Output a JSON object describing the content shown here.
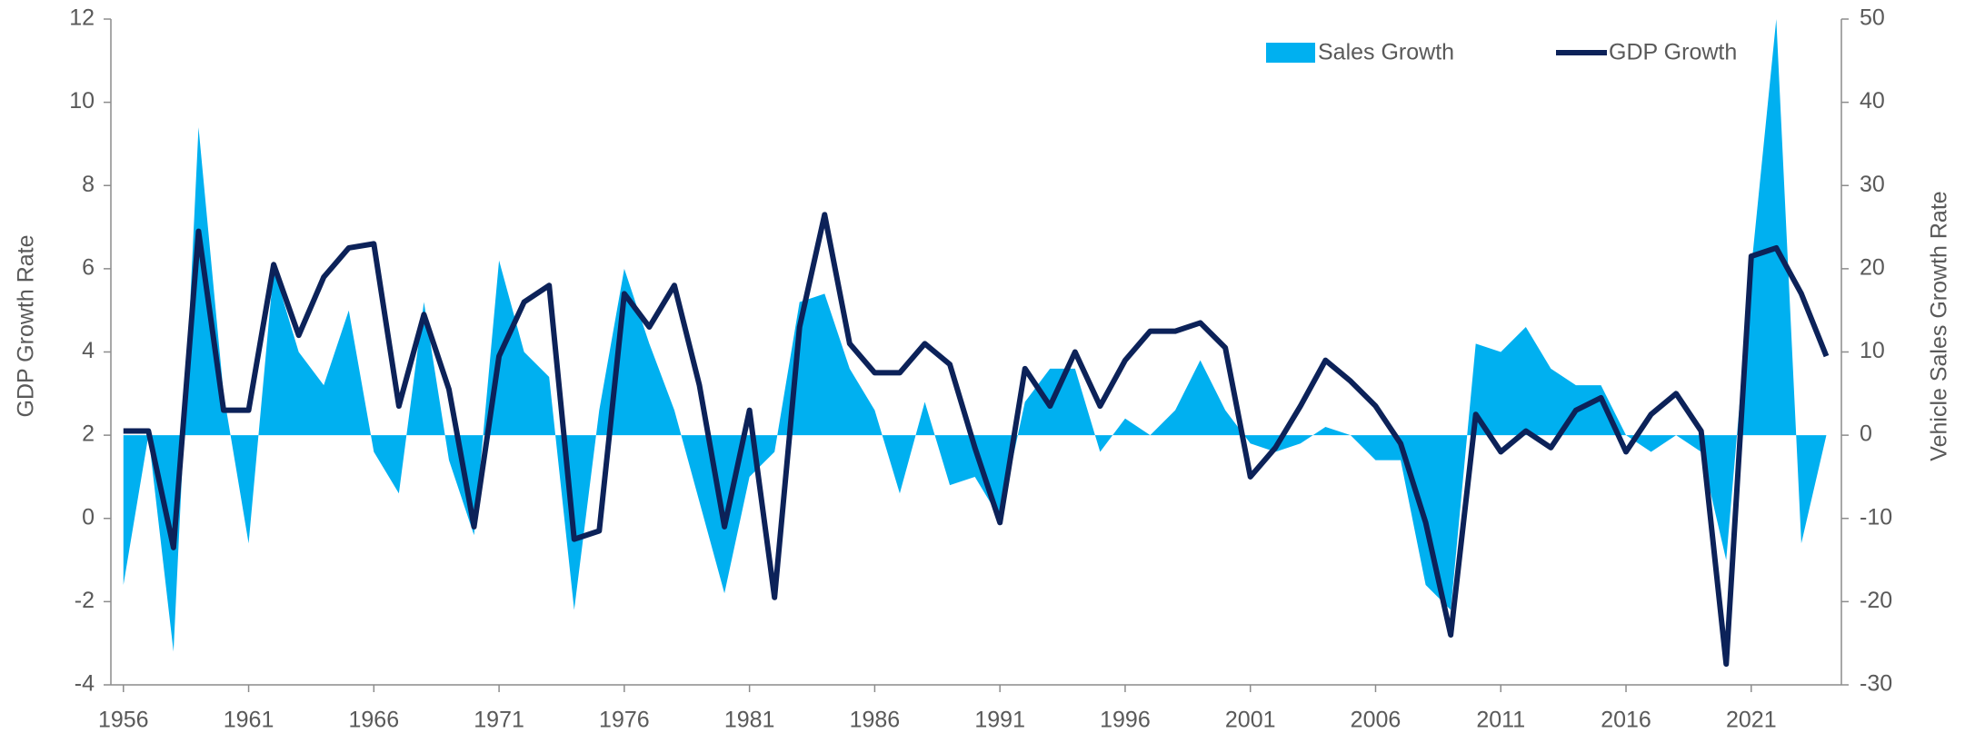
{
  "chart_data": {
    "type": "area-line",
    "x": [
      1956,
      1957,
      1958,
      1959,
      1960,
      1961,
      1962,
      1963,
      1964,
      1965,
      1966,
      1967,
      1968,
      1969,
      1970,
      1971,
      1972,
      1973,
      1974,
      1975,
      1976,
      1977,
      1978,
      1979,
      1980,
      1981,
      1982,
      1983,
      1984,
      1985,
      1986,
      1987,
      1988,
      1989,
      1990,
      1991,
      1992,
      1993,
      1994,
      1995,
      1996,
      1997,
      1998,
      1999,
      2000,
      2001,
      2002,
      2003,
      2004,
      2005,
      2006,
      2007,
      2008,
      2009,
      2010,
      2011,
      2012,
      2013,
      2014,
      2015,
      2016,
      2017,
      2018,
      2019,
      2020,
      2021,
      2022,
      2023,
      2024
    ],
    "series": [
      {
        "name": "Sales Growth",
        "color": "#00b0f0",
        "axis": "y2",
        "kind": "area",
        "values": [
          -18,
          0,
          -26,
          37,
          5,
          -13,
          20,
          10,
          6,
          15,
          -2,
          -7,
          16,
          -3,
          -12,
          21,
          10,
          7,
          -21,
          3,
          20,
          11,
          3,
          -8,
          -19,
          -5,
          -2,
          16,
          17,
          8,
          3,
          -7,
          4,
          -6,
          -5,
          -10,
          4,
          8,
          8,
          -2,
          2,
          0,
          3,
          9,
          3,
          -1,
          -2,
          -1,
          1,
          0,
          -3,
          -3,
          -18,
          -21,
          11,
          10,
          13,
          8,
          6,
          6,
          0,
          -2,
          0,
          -2,
          -15,
          20,
          50,
          -13,
          0
        ]
      },
      {
        "name": "GDP Growth",
        "color": "#0c2259",
        "axis": "y",
        "kind": "line",
        "values": [
          2.1,
          2.1,
          -0.7,
          6.9,
          2.6,
          2.6,
          6.1,
          4.4,
          5.8,
          6.5,
          6.6,
          2.7,
          4.9,
          3.1,
          -0.2,
          3.9,
          5.2,
          5.6,
          -0.5,
          -0.3,
          5.4,
          4.6,
          5.6,
          3.2,
          -0.2,
          2.6,
          -1.9,
          4.6,
          7.3,
          4.2,
          3.5,
          3.5,
          4.2,
          3.7,
          1.7,
          -0.1,
          3.6,
          2.7,
          4.0,
          2.7,
          3.8,
          4.5,
          4.5,
          4.7,
          4.1,
          1.0,
          1.7,
          2.7,
          3.8,
          3.3,
          2.7,
          1.8,
          -0.1,
          -2.8,
          2.5,
          1.6,
          2.1,
          1.7,
          2.6,
          2.9,
          1.6,
          2.5,
          3.0,
          2.1,
          -3.5,
          6.3,
          6.5,
          5.4,
          3.9
        ]
      }
    ],
    "y_label": "GDP Growth Rate",
    "y2_label": "Vehicle Sales Growth Rate",
    "xlim": [
      1955.5,
      2024.6
    ],
    "xticks": [
      1956,
      1961,
      1966,
      1971,
      1976,
      1981,
      1986,
      1991,
      1996,
      2001,
      2006,
      2011,
      2016,
      2021
    ],
    "ylim": [
      -4,
      12
    ],
    "yticks": [
      -4,
      -2,
      0,
      2,
      4,
      6,
      8,
      10,
      12
    ],
    "y2lim": [
      -30,
      50
    ],
    "y2ticks": [
      -30,
      -20,
      -10,
      0,
      10,
      20,
      30,
      40,
      50
    ],
    "legend": "top-right"
  }
}
